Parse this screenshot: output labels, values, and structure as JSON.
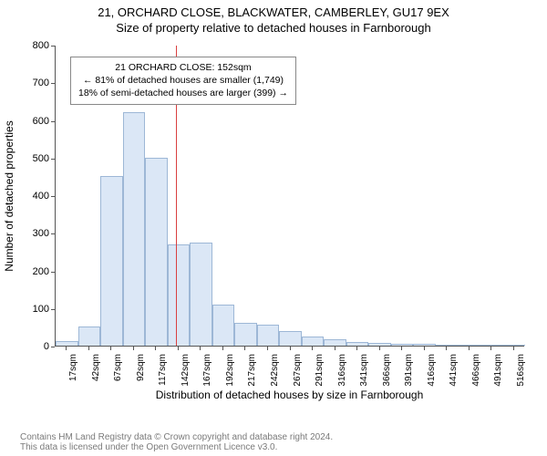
{
  "titles": {
    "line1": "21, ORCHARD CLOSE, BLACKWATER, CAMBERLEY, GU17 9EX",
    "line2": "Size of property relative to detached houses in Farnborough"
  },
  "chart": {
    "type": "histogram",
    "ylabel": "Number of detached properties",
    "xlabel": "Distribution of detached houses by size in Farnborough",
    "ylim": [
      0,
      800
    ],
    "ytick_step": 100,
    "yticks": [
      0,
      100,
      200,
      300,
      400,
      500,
      600,
      700,
      800
    ],
    "xtick_labels": [
      "17sqm",
      "42sqm",
      "67sqm",
      "92sqm",
      "117sqm",
      "142sqm",
      "167sqm",
      "192sqm",
      "217sqm",
      "242sqm",
      "267sqm",
      "291sqm",
      "316sqm",
      "341sqm",
      "366sqm",
      "391sqm",
      "416sqm",
      "441sqm",
      "466sqm",
      "491sqm",
      "516sqm"
    ],
    "values": [
      12,
      50,
      450,
      620,
      500,
      270,
      275,
      110,
      60,
      55,
      40,
      25,
      18,
      10,
      8,
      5,
      4,
      0,
      3,
      2,
      2
    ],
    "bar_fill": "#dbe7f6",
    "bar_stroke": "#9db7d6",
    "background_color": "#ffffff",
    "axis_color": "#555555",
    "label_fontsize": 12,
    "tick_fontsize": 11,
    "xtick_fontsize": 10,
    "marker": {
      "position_index": 5.4,
      "color": "#d94040"
    },
    "callout": {
      "line1": "21 ORCHARD CLOSE: 152sqm",
      "line2": "← 81% of detached houses are smaller (1,749)",
      "line3": "18% of semi-detached houses are larger (399) →",
      "border_color": "#888888",
      "bg_color": "#ffffff",
      "fontsize": 10.5
    }
  },
  "footer": {
    "line1": "Contains HM Land Registry data © Crown copyright and database right 2024.",
    "line2": "This data is licensed under the Open Government Licence v3.0."
  }
}
